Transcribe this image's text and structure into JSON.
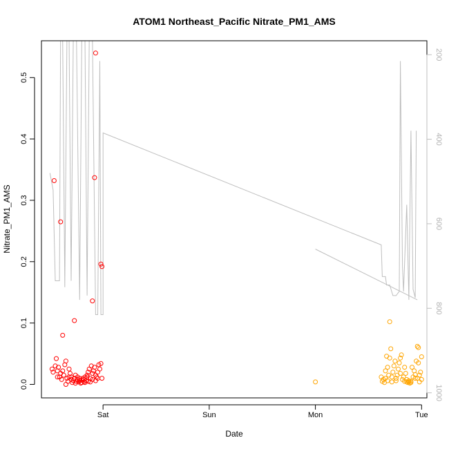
{
  "chart_data": {
    "type": "scatter",
    "title": "ATOM1 Northeast_Pacific Nitrate_PM1_AMS",
    "xlabel": "Date",
    "ylabel": "Nitrate_PM1_AMS",
    "x_ticks": [
      {
        "label": "Sat",
        "day": 1.0
      },
      {
        "label": "Sun",
        "day": 2.0
      },
      {
        "label": "Mon",
        "day": 3.0
      },
      {
        "label": "Tue",
        "day": 4.0
      }
    ],
    "xlim_days": [
      0.42,
      4.05
    ],
    "ylim": [
      -0.022,
      0.56
    ],
    "y_ticks": [
      0.0,
      0.1,
      0.2,
      0.3,
      0.4,
      0.5
    ],
    "y_tick_labels": [
      "0.0",
      "0.1",
      "0.2",
      "0.3",
      "0.4",
      "0.5"
    ],
    "secondary_axis": {
      "label": "",
      "ylim": [
        1012,
        167
      ],
      "ticks": [
        200,
        400,
        600,
        800,
        1000
      ],
      "tick_labels": [
        "200",
        "400",
        "600",
        "800",
        "1000"
      ],
      "color": "#bebebe"
    },
    "series": [
      {
        "color": "#ff0000",
        "points": [
          [
            0.54,
            0.332
          ],
          [
            0.6,
            0.265
          ],
          [
            0.62,
            0.08
          ],
          [
            0.73,
            0.104
          ],
          [
            0.92,
            0.337
          ],
          [
            0.9,
            0.136
          ],
          [
            0.93,
            0.54
          ],
          [
            0.98,
            0.196
          ],
          [
            0.99,
            0.192
          ],
          [
            0.52,
            0.025
          ],
          [
            0.53,
            0.02
          ],
          [
            0.55,
            0.03
          ],
          [
            0.56,
            0.042
          ],
          [
            0.57,
            0.022
          ],
          [
            0.58,
            0.028
          ],
          [
            0.59,
            0.012
          ],
          [
            0.6,
            0.018
          ],
          [
            0.61,
            0.008
          ],
          [
            0.62,
            0.022
          ],
          [
            0.63,
            0.015
          ],
          [
            0.64,
            0.032
          ],
          [
            0.65,
            0.038
          ],
          [
            0.66,
            0.01
          ],
          [
            0.67,
            0.005
          ],
          [
            0.68,
            0.012
          ],
          [
            0.69,
            0.018
          ],
          [
            0.7,
            0.008
          ],
          [
            0.71,
            0.003
          ],
          [
            0.72,
            0.006
          ],
          [
            0.73,
            0.01
          ],
          [
            0.74,
            0.002
          ],
          [
            0.75,
            0.005
          ],
          [
            0.76,
            0.008
          ],
          [
            0.77,
            0.004
          ],
          [
            0.78,
            0.006
          ],
          [
            0.79,
            0.002
          ],
          [
            0.8,
            0.007
          ],
          [
            0.81,
            0.01
          ],
          [
            0.82,
            0.004
          ],
          [
            0.83,
            0.012
          ],
          [
            0.84,
            0.006
          ],
          [
            0.85,
            0.015
          ],
          [
            0.86,
            0.02
          ],
          [
            0.87,
            0.025
          ],
          [
            0.88,
            0.01
          ],
          [
            0.89,
            0.03
          ],
          [
            0.9,
            0.018
          ],
          [
            0.91,
            0.022
          ],
          [
            0.92,
            0.028
          ],
          [
            0.93,
            0.015
          ],
          [
            0.94,
            0.012
          ],
          [
            0.95,
            0.02
          ],
          [
            0.96,
            0.032
          ],
          [
            0.97,
            0.025
          ],
          [
            0.98,
            0.034
          ],
          [
            0.99,
            0.01
          ],
          [
            0.86,
            0.005
          ],
          [
            0.88,
            0.004
          ],
          [
            0.7,
            0.012
          ],
          [
            0.65,
            0.0
          ],
          [
            0.76,
            0.012
          ],
          [
            0.8,
            0.003
          ],
          [
            0.83,
            0.003
          ],
          [
            0.9,
            0.008
          ],
          [
            0.93,
            0.006
          ],
          [
            0.95,
            0.01
          ],
          [
            0.57,
            0.012
          ],
          [
            0.68,
            0.025
          ],
          [
            0.74,
            0.015
          ],
          [
            0.78,
            0.01
          ],
          [
            0.82,
            0.008
          ],
          [
            0.85,
            0.012
          ]
        ]
      },
      {
        "color": "#ffa500",
        "points": [
          [
            3.0,
            0.004
          ],
          [
            3.7,
            0.102
          ],
          [
            3.62,
            0.012
          ],
          [
            3.63,
            0.005
          ],
          [
            3.64,
            0.008
          ],
          [
            3.65,
            0.003
          ],
          [
            3.66,
            0.022
          ],
          [
            3.67,
            0.046
          ],
          [
            3.68,
            0.028
          ],
          [
            3.69,
            0.015
          ],
          [
            3.7,
            0.043
          ],
          [
            3.71,
            0.058
          ],
          [
            3.72,
            0.012
          ],
          [
            3.73,
            0.02
          ],
          [
            3.74,
            0.03
          ],
          [
            3.75,
            0.038
          ],
          [
            3.76,
            0.006
          ],
          [
            3.77,
            0.015
          ],
          [
            3.78,
            0.025
          ],
          [
            3.79,
            0.035
          ],
          [
            3.8,
            0.043
          ],
          [
            3.81,
            0.048
          ],
          [
            3.82,
            0.008
          ],
          [
            3.83,
            0.012
          ],
          [
            3.84,
            0.005
          ],
          [
            3.85,
            0.018
          ],
          [
            3.86,
            0.004
          ],
          [
            3.87,
            0.003
          ],
          [
            3.88,
            0.006
          ],
          [
            3.89,
            0.002
          ],
          [
            3.9,
            0.005
          ],
          [
            3.91,
            0.028
          ],
          [
            3.92,
            0.012
          ],
          [
            3.93,
            0.022
          ],
          [
            3.94,
            0.01
          ],
          [
            3.95,
            0.038
          ],
          [
            3.96,
            0.062
          ],
          [
            3.97,
            0.06
          ],
          [
            3.98,
            0.015
          ],
          [
            3.99,
            0.02
          ],
          [
            4.0,
            0.008
          ],
          [
            3.98,
            0.004
          ],
          [
            3.96,
            0.01
          ],
          [
            3.94,
            0.016
          ],
          [
            3.9,
            0.003
          ],
          [
            3.88,
            0.004
          ],
          [
            3.86,
            0.008
          ],
          [
            3.84,
            0.028
          ],
          [
            3.8,
            0.018
          ],
          [
            3.76,
            0.01
          ],
          [
            3.72,
            0.004
          ],
          [
            3.68,
            0.006
          ],
          [
            3.66,
            0.01
          ],
          [
            3.97,
            0.035
          ],
          [
            4.0,
            0.045
          ]
        ]
      }
    ],
    "gray_line": {
      "color": "#bebebe",
      "points": [
        [
          0.5,
          480
        ],
        [
          0.53,
          520
        ],
        [
          0.55,
          735
        ],
        [
          0.57,
          735
        ],
        [
          0.59,
          735
        ],
        [
          0.6,
          160
        ],
        [
          0.62,
          160
        ],
        [
          0.64,
          750
        ],
        [
          0.66,
          160
        ],
        [
          0.68,
          160
        ],
        [
          0.7,
          735
        ],
        [
          0.72,
          160
        ],
        [
          0.75,
          160
        ],
        [
          0.78,
          780
        ],
        [
          0.8,
          160
        ],
        [
          0.83,
          160
        ],
        [
          0.85,
          770
        ],
        [
          0.87,
          160
        ],
        [
          0.9,
          160
        ],
        [
          0.93,
          815
        ],
        [
          0.95,
          815
        ],
        [
          0.97,
          215
        ],
        [
          0.98,
          815
        ],
        [
          1.0,
          815
        ],
        [
          1.0,
          385
        ],
        [
          3.62,
          650
        ],
        [
          3.63,
          725
        ],
        [
          3.66,
          725
        ],
        [
          3.67,
          745
        ],
        [
          3.7,
          745
        ],
        [
          3.73,
          770
        ],
        [
          3.76,
          770
        ],
        [
          3.79,
          760
        ],
        [
          3.8,
          215
        ],
        [
          3.82,
          700
        ],
        [
          3.83,
          760
        ],
        [
          3.86,
          555
        ],
        [
          3.88,
          780
        ],
        [
          3.9,
          380
        ],
        [
          3.92,
          755
        ],
        [
          3.94,
          775
        ],
        [
          3.95,
          380
        ]
      ],
      "extra_segment": [
        [
          3.0,
          660
        ],
        [
          3.96,
          780
        ]
      ]
    }
  }
}
